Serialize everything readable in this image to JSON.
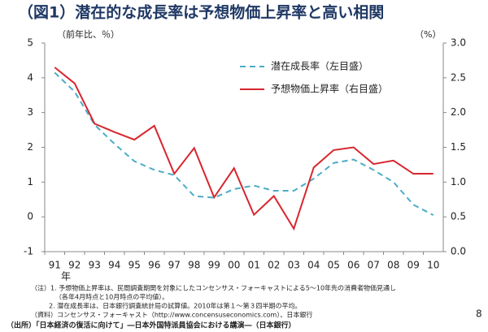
{
  "chart_data": {
    "type": "line",
    "title": "（図1）潜在的な成長率は予想物価上昇率と高い相関",
    "y_label": "（前年比、％）",
    "y2_label": "（%）",
    "x_unit_label": "年",
    "categories": [
      "91",
      "92",
      "93",
      "94",
      "95",
      "96",
      "97",
      "98",
      "99",
      "00",
      "01",
      "02",
      "03",
      "04",
      "05",
      "06",
      "07",
      "08",
      "09",
      "10"
    ],
    "series": [
      {
        "name": "潜在成長率（左目盛）",
        "color": "#4bacc6",
        "dashed": true,
        "axis": "y",
        "values": [
          4.15,
          3.6,
          2.65,
          2.1,
          1.6,
          1.35,
          1.2,
          0.6,
          0.55,
          0.8,
          0.9,
          0.75,
          0.75,
          1.1,
          1.55,
          1.65,
          1.35,
          1.0,
          0.35,
          0.05
        ]
      },
      {
        "name": "予想物価上昇率（右目盛）",
        "color": "#d7262e",
        "dashed": false,
        "axis": "y2",
        "values": [
          2.65,
          2.42,
          1.84,
          1.72,
          1.61,
          1.81,
          1.12,
          1.49,
          0.78,
          1.2,
          0.53,
          0.8,
          0.33,
          1.21,
          1.46,
          1.5,
          1.26,
          1.31,
          1.12,
          1.12
        ]
      }
    ],
    "ylim": [
      -1,
      5
    ],
    "yticks": [
      -1,
      0,
      1,
      2,
      3,
      4,
      5
    ],
    "y2lim": [
      0,
      3
    ],
    "y2ticks": [
      {
        "value": 0,
        "label": "0.0"
      },
      0.5,
      {
        "value": 1,
        "label": "1.0"
      },
      1.5,
      {
        "value": 2,
        "label": "2.0"
      },
      2.5,
      {
        "value": 3,
        "label": "3.0"
      }
    ],
    "grid": false,
    "legend": "upper right",
    "notes": [
      "（注）1. 予想物価上昇率は、民間調査期関を対象にしたコンセンサス・フォーキャストによる5～10年先の消費者物価見通し",
      "（各年4月時点と10月時点の平均値）。",
      "2. 潜在成長率は、日本銀行調査統計局の試算値。2010年は第１～第３四半期の平均。",
      "（資料）コンセンサス・フォーキャスト（http://www.concensuseconomics.com）、日本銀行"
    ],
    "source": "（出所）「日本経済の復活に向けて」―日本外国特派員協会における講演―（日本銀行）",
    "page_number": "8"
  }
}
